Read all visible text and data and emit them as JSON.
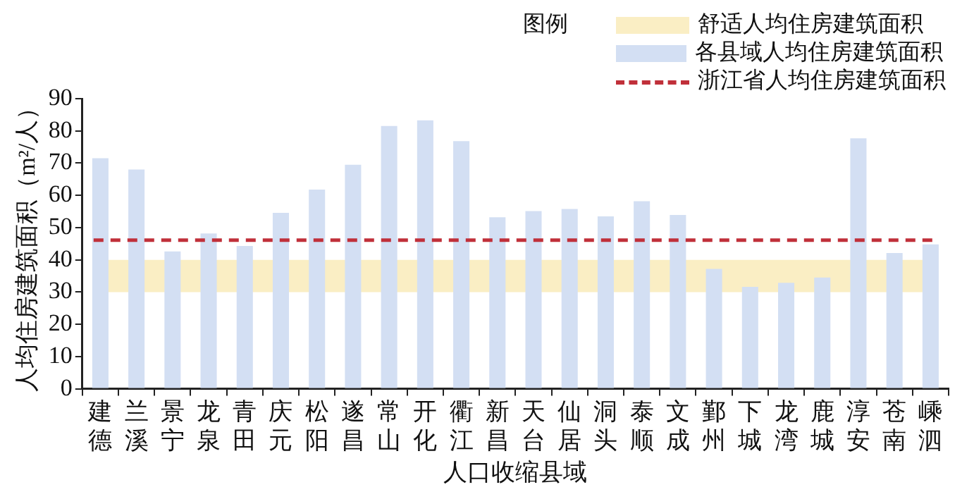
{
  "chart_data": {
    "type": "bar",
    "xlabel": "人口收缩县域",
    "ylabel": "人均住房建筑面积（m²/人）",
    "legend_title": "图例",
    "categories": [
      "建德",
      "兰溪",
      "景宁",
      "龙泉",
      "青田",
      "庆元",
      "松阳",
      "遂昌",
      "常山",
      "开化",
      "衢江",
      "新昌",
      "天台",
      "仙居",
      "洞头",
      "泰顺",
      "文成",
      "鄞州",
      "下城",
      "龙湾",
      "鹿城",
      "淳安",
      "苍南",
      "嵊泗"
    ],
    "series": [
      {
        "name": "各县域人均住房建筑面积",
        "color": "#d3dff3",
        "values": [
          71.5,
          68,
          42.6,
          48.2,
          44.3,
          54.6,
          61.8,
          69.5,
          81.5,
          83.3,
          76.8,
          53.2,
          55.1,
          55.8,
          53.5,
          58.2,
          53.9,
          37.2,
          31.6,
          32.9,
          34.5,
          77.7,
          42.1,
          44.8
        ]
      }
    ],
    "bands": [
      {
        "axis": "y",
        "from": 30,
        "to": 40,
        "label": "舒适人均住房建筑面积",
        "color": "#faeec4"
      }
    ],
    "ref_lines": [
      {
        "axis": "y",
        "value": 46.1,
        "label": "浙江省人均住房建筑面积",
        "color": "#c0303a",
        "line_style": "dashed"
      }
    ],
    "ylim": [
      0,
      90
    ],
    "yticks": [
      0,
      10,
      20,
      30,
      40,
      50,
      60,
      70,
      80,
      90
    ],
    "grid": false,
    "legend": "top right"
  }
}
